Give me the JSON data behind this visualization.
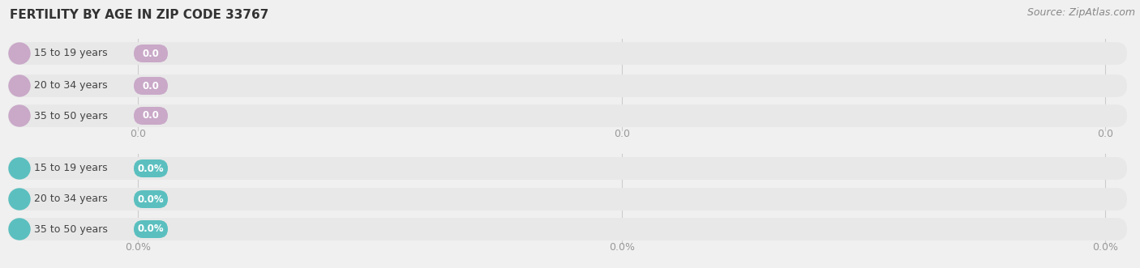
{
  "title": "FERTILITY BY AGE IN ZIP CODE 33767",
  "source": "Source: ZipAtlas.com",
  "background_color": "#f0f0f0",
  "bar_bg_color": "#e8e8e8",
  "top_section": {
    "categories": [
      "15 to 19 years",
      "20 to 34 years",
      "35 to 50 years"
    ],
    "values": [
      0.0,
      0.0,
      0.0
    ],
    "bar_color": "#c9a8c8",
    "value_label": "0.0",
    "tick_labels": [
      "0.0",
      "0.0",
      "0.0"
    ]
  },
  "bottom_section": {
    "categories": [
      "15 to 19 years",
      "20 to 34 years",
      "35 to 50 years"
    ],
    "values": [
      0.0,
      0.0,
      0.0
    ],
    "bar_color": "#5bbfbf",
    "value_label": "0.0%",
    "tick_labels": [
      "0.0%",
      "0.0%",
      "0.0%"
    ]
  },
  "title_fontsize": 11,
  "source_fontsize": 9,
  "label_fontsize": 9,
  "tick_fontsize": 9,
  "bar_label_color": "#444444",
  "tick_color": "#999999",
  "source_color": "#888888",
  "title_color": "#333333",
  "gridline_color": "#cccccc"
}
